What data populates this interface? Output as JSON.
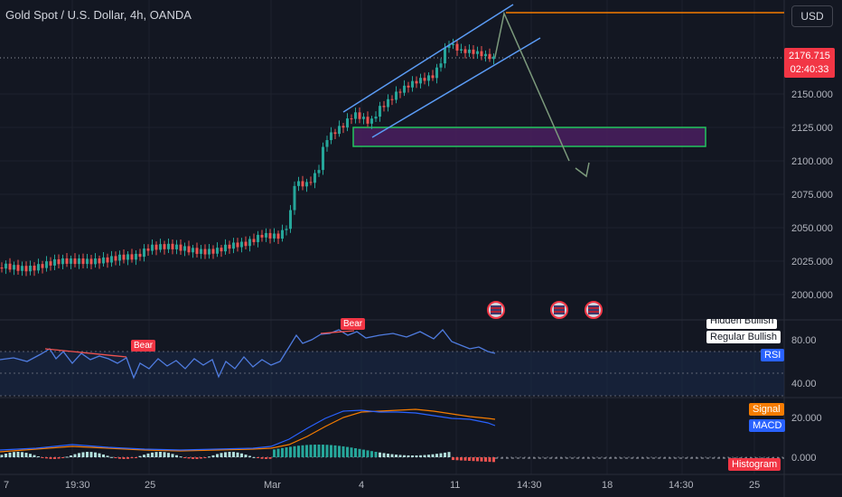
{
  "chart": {
    "title": "Gold Spot / U.S. Dollar, 4h, OANDA",
    "currency_button": "USD",
    "current_price": "2176.715",
    "countdown": "02:40:33",
    "price_axis": [
      "2150.000",
      "2125.000",
      "2100.000",
      "2075.000",
      "2050.000",
      "2025.000",
      "2000.000"
    ],
    "rsi_axis": [
      "80.00",
      "40.00"
    ],
    "macd_axis": [
      "20.000",
      "0.000"
    ],
    "time_axis": [
      "7",
      "19:30",
      "25",
      "Mar",
      "4",
      "11",
      "14:30",
      "18",
      "14:30",
      "25"
    ],
    "rsi_labels": {
      "hidden_bullish": "Hidden Bullish",
      "regular_bullish": "Regular Bullish",
      "rsi": "RSI",
      "bear1": "Bear",
      "bear2": "Bear"
    },
    "macd_labels": {
      "signal": "Signal",
      "macd": "MACD",
      "histogram": "Histogram"
    },
    "event_icons": [
      "us-flag-icon",
      "us-flag-icon",
      "us-flag-icon"
    ],
    "colors": {
      "background": "#131722",
      "up": "#26a69a",
      "down": "#ef5350",
      "channel": "#5b9cf6",
      "zone_border": "#22c55e",
      "zone_fill": "#4a1f5f",
      "target_line": "#f57c00",
      "projection": "#7c9a7c",
      "price_tag": "#f23645"
    }
  }
}
